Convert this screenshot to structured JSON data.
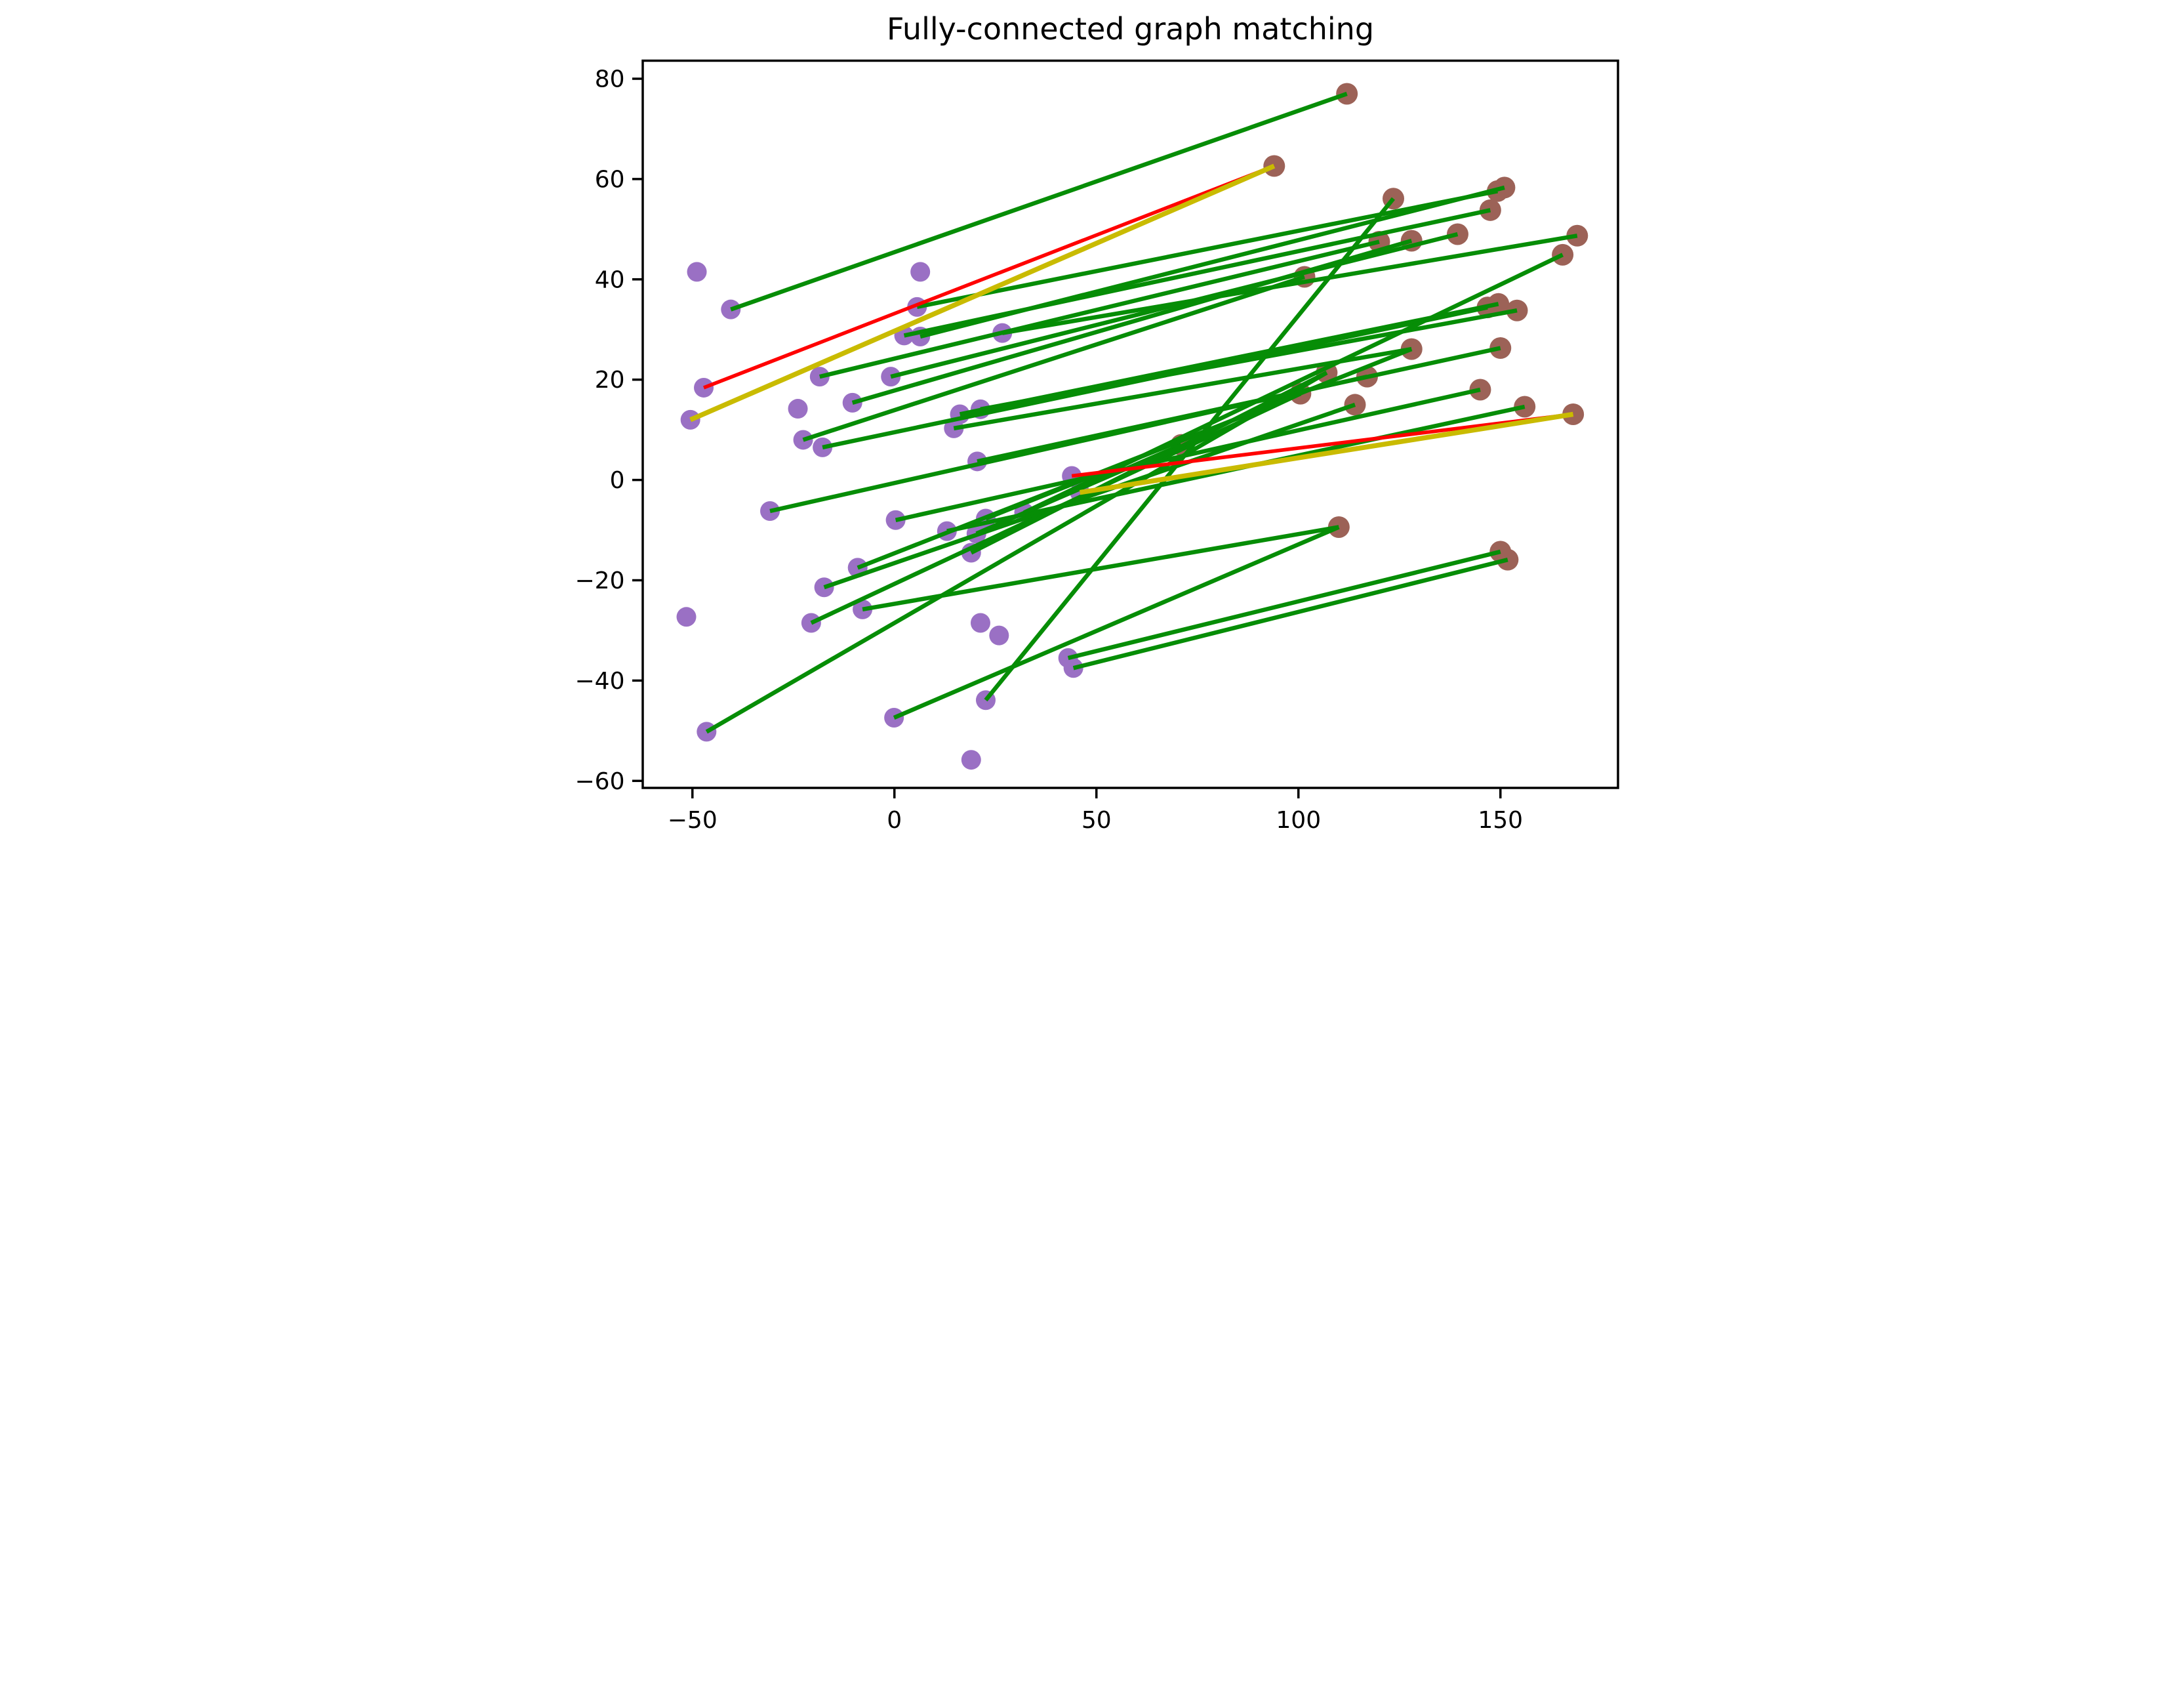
{
  "chart_data": {
    "type": "scatter",
    "title": "Fully-connected graph matching",
    "xlabel": "",
    "ylabel": "",
    "xlim": [
      -62.3,
      179.1
    ],
    "ylim": [
      -61.4,
      83.6
    ],
    "x_ticks": [
      -50,
      0,
      50,
      100,
      150
    ],
    "y_ticks": [
      80,
      60,
      40,
      20,
      0,
      -20,
      -40,
      -60
    ],
    "grid": false,
    "legend": "none",
    "colors": {
      "source_points": "#9a70c4",
      "target_points": "#9c6257",
      "correct_match_edge": "#068d06",
      "missed_match_edge": "#ff0000",
      "wrong_match_edge": "#c9bb00",
      "axis": "#000000",
      "background": "#ffffff"
    },
    "series": [
      {
        "name": "source-points",
        "color": "#9a70c4",
        "points": [
          [
            -48.9,
            41.5
          ],
          [
            -40.5,
            34.0
          ],
          [
            -47.2,
            18.4
          ],
          [
            -50.5,
            12.0
          ],
          [
            -51.5,
            -27.3
          ],
          [
            -30.8,
            -6.2
          ],
          [
            -23.9,
            14.2
          ],
          [
            -18.5,
            20.6
          ],
          [
            -22.6,
            8.0
          ],
          [
            -17.8,
            6.5
          ],
          [
            -10.4,
            15.4
          ],
          [
            6.4,
            41.5
          ],
          [
            5.6,
            34.5
          ],
          [
            2.4,
            28.8
          ],
          [
            6.4,
            28.6
          ],
          [
            -0.9,
            20.6
          ],
          [
            16.2,
            13.1
          ],
          [
            21.3,
            14.1
          ],
          [
            14.7,
            10.3
          ],
          [
            20.5,
            3.7
          ],
          [
            26.7,
            29.3
          ],
          [
            -9.1,
            -17.5
          ],
          [
            -17.4,
            -21.4
          ],
          [
            -20.6,
            -28.5
          ],
          [
            -7.9,
            -25.8
          ],
          [
            21.3,
            -28.5
          ],
          [
            25.9,
            -31.0
          ],
          [
            -46.5,
            -50.2
          ],
          [
            -0.1,
            -47.4
          ],
          [
            19.0,
            -55.8
          ],
          [
            22.6,
            -43.9
          ],
          [
            43.0,
            -35.5
          ],
          [
            44.3,
            -37.5
          ],
          [
            43.9,
            0.8
          ],
          [
            45.9,
            -2.5
          ],
          [
            32.1,
            -6.5
          ],
          [
            22.6,
            -7.7
          ],
          [
            13.0,
            -10.2
          ],
          [
            20.3,
            -10.7
          ],
          [
            19.0,
            -14.5
          ],
          [
            0.3,
            -8.0
          ]
        ]
      },
      {
        "name": "target-points",
        "color": "#9c6257",
        "points": [
          [
            112.0,
            77.0
          ],
          [
            94.0,
            62.6
          ],
          [
            149.3,
            57.6
          ],
          [
            151.0,
            58.3
          ],
          [
            147.5,
            53.8
          ],
          [
            123.5,
            56.1
          ],
          [
            120.0,
            47.5
          ],
          [
            128.0,
            47.7
          ],
          [
            139.4,
            49.0
          ],
          [
            169.0,
            48.7
          ],
          [
            165.4,
            44.9
          ],
          [
            101.5,
            40.5
          ],
          [
            146.8,
            34.4
          ],
          [
            149.5,
            35.1
          ],
          [
            154.1,
            33.8
          ],
          [
            128.0,
            26.1
          ],
          [
            150.0,
            26.3
          ],
          [
            107.0,
            21.4
          ],
          [
            117.0,
            20.6
          ],
          [
            100.5,
            17.2
          ],
          [
            114.0,
            15.0
          ],
          [
            145.0,
            18.0
          ],
          [
            156.0,
            14.6
          ],
          [
            168.0,
            13.1
          ],
          [
            71.0,
            7.0
          ],
          [
            110.0,
            -9.4
          ],
          [
            150.0,
            -14.3
          ],
          [
            151.8,
            -15.9
          ]
        ]
      }
    ],
    "edges": {
      "green": [
        [
          -40.5,
          34.0,
          112.0,
          77.0
        ],
        [
          5.6,
          34.5,
          149.3,
          57.6
        ],
        [
          6.4,
          28.6,
          151.0,
          58.3
        ],
        [
          2.4,
          28.8,
          147.5,
          53.8
        ],
        [
          -18.5,
          20.6,
          120.0,
          47.5
        ],
        [
          -10.4,
          15.4,
          128.0,
          47.7
        ],
        [
          -0.9,
          20.6,
          139.4,
          49.0
        ],
        [
          26.7,
          29.3,
          169.0,
          48.7
        ],
        [
          22.6,
          -43.9,
          123.5,
          56.1
        ],
        [
          -22.6,
          8.0,
          101.5,
          40.5
        ],
        [
          -17.8,
          6.5,
          146.8,
          34.4
        ],
        [
          16.2,
          13.1,
          149.5,
          35.1
        ],
        [
          21.3,
          14.1,
          154.1,
          33.8
        ],
        [
          14.7,
          10.3,
          128.0,
          26.1
        ],
        [
          20.5,
          3.7,
          150.0,
          26.3
        ],
        [
          -46.5,
          -50.2,
          107.0,
          21.4
        ],
        [
          -30.8,
          -6.2,
          117.0,
          20.6
        ],
        [
          -9.1,
          -17.5,
          100.5,
          17.2
        ],
        [
          -17.4,
          -21.4,
          114.0,
          15.0
        ],
        [
          0.3,
          -8.0,
          145.0,
          18.0
        ],
        [
          13.0,
          -10.2,
          156.0,
          14.6
        ],
        [
          20.3,
          -10.7,
          71.0,
          7.0
        ],
        [
          -0.1,
          -47.4,
          110.0,
          -9.4
        ],
        [
          43.0,
          -35.5,
          150.0,
          -14.3
        ],
        [
          44.3,
          -37.5,
          151.8,
          -15.9
        ],
        [
          32.1,
          -6.5,
          165.4,
          44.9
        ],
        [
          -20.6,
          -28.5,
          100.5,
          17.2
        ],
        [
          -7.9,
          -25.8,
          110.0,
          -9.4
        ],
        [
          22.6,
          -7.7,
          128.0,
          26.1
        ],
        [
          19.0,
          -14.5,
          107.0,
          21.4
        ]
      ],
      "red": [
        [
          -47.2,
          18.4,
          94.0,
          62.6
        ],
        [
          43.9,
          0.8,
          168.0,
          13.1
        ]
      ],
      "yellow": [
        [
          -50.5,
          12.0,
          94.0,
          62.6
        ],
        [
          45.9,
          -2.5,
          168.0,
          13.1
        ]
      ]
    }
  }
}
